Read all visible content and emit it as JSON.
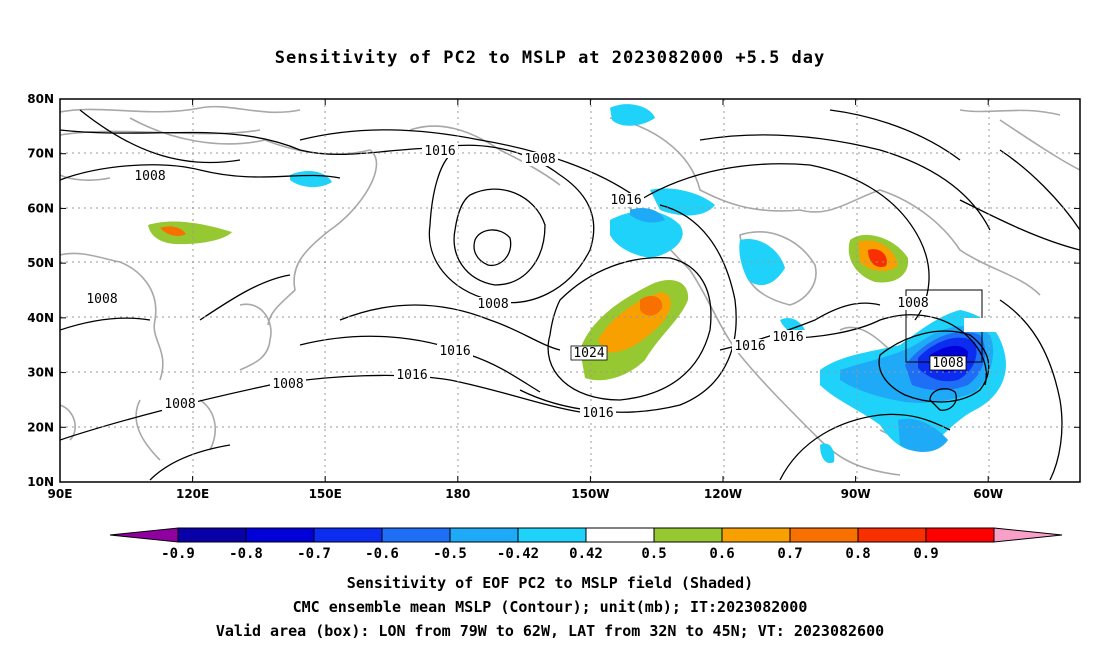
{
  "title": "Sensitivity of PC2 to MSLP at 2023082000 +5.5 day",
  "axes": {
    "lat_labels": [
      "80N",
      "70N",
      "60N",
      "50N",
      "40N",
      "30N",
      "20N",
      "10N"
    ],
    "lon_labels": [
      "90E",
      "120E",
      "150E",
      "180",
      "150W",
      "120W",
      "90W",
      "60W"
    ]
  },
  "contour_labels": [
    "1016",
    "1008",
    "1008",
    "1016",
    "1008",
    "1016",
    "1016",
    "1024",
    "1016",
    "1008",
    "1008",
    "1016",
    "1008",
    "1016",
    "1008",
    "1008"
  ],
  "colorbar": {
    "labels": [
      "-0.9",
      "-0.8",
      "-0.7",
      "-0.6",
      "-0.5",
      "-0.42",
      "0.42",
      "0.5",
      "0.6",
      "0.7",
      "0.8",
      "0.9"
    ],
    "colors": [
      "#9000a0",
      "#0a00a8",
      "#0000d8",
      "#0c2cf0",
      "#1e6ef6",
      "#1eaaf6",
      "#1ed2fa",
      "#ffffff",
      "#96c832",
      "#f8a000",
      "#f87000",
      "#f83000",
      "#ff0000",
      "#f8a0c8"
    ]
  },
  "footer": {
    "line1": "Sensitivity of EOF PC2 to MSLP field (Shaded)",
    "line2": "CMC ensemble mean MSLP (Contour); unit(mb); IT:2023082000",
    "line3": "Valid area (box): LON from 79W to 62W, LAT from 32N to 45N; VT: 2023082600"
  }
}
